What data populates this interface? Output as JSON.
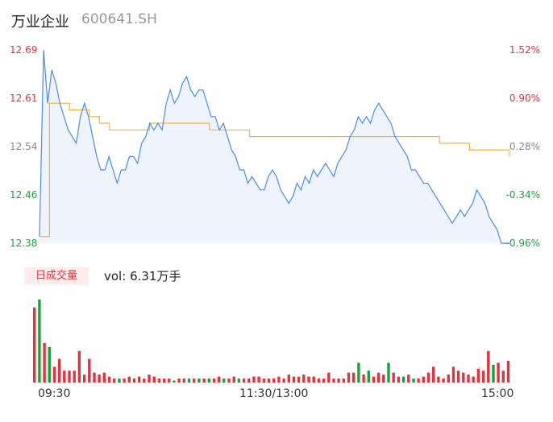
{
  "header": {
    "name": "万业企业",
    "code": "600641.SH"
  },
  "badge": "日成交量",
  "volume": {
    "label": "vol:",
    "value": "6.31万手"
  },
  "colors": {
    "price_line": "#4a8cf0",
    "avg_line": "#f0b43c",
    "up": "#e6323c",
    "down": "#1aa33b",
    "flat": "#888888",
    "area_fill": "#eef3fc"
  },
  "chart_data": [
    {
      "type": "line",
      "title": "",
      "ylim": [
        12.38,
        12.69
      ],
      "y_ticks_left": [
        "12.69",
        "12.61",
        "12.54",
        "12.46",
        "12.38"
      ],
      "y_ticks_right": [
        "1.52%",
        "0.90%",
        "0.28%",
        "-0.34%",
        "-0.96%"
      ],
      "x_ticks": [
        "09:30",
        "11:30/13:00",
        "15:00"
      ],
      "series": [
        {
          "role": "price",
          "values": [
            12.4,
            12.68,
            12.6,
            12.65,
            12.63,
            12.6,
            12.58,
            12.56,
            12.55,
            12.54,
            12.58,
            12.6,
            12.58,
            12.55,
            12.52,
            12.5,
            12.5,
            12.52,
            12.5,
            12.48,
            12.5,
            12.5,
            12.52,
            12.52,
            12.51,
            12.54,
            12.55,
            12.57,
            12.56,
            12.57,
            12.56,
            12.6,
            12.62,
            12.6,
            12.61,
            12.63,
            12.64,
            12.62,
            12.61,
            12.62,
            12.62,
            12.6,
            12.58,
            12.58,
            12.56,
            12.57,
            12.55,
            12.53,
            12.52,
            12.5,
            12.5,
            12.48,
            12.49,
            12.48,
            12.47,
            12.47,
            12.49,
            12.5,
            12.49,
            12.47,
            12.46,
            12.45,
            12.46,
            12.48,
            12.47,
            12.49,
            12.48,
            12.5,
            12.49,
            12.5,
            12.51,
            12.5,
            12.49,
            12.51,
            12.52,
            12.53,
            12.55,
            12.56,
            12.58,
            12.57,
            12.58,
            12.57,
            12.59,
            12.6,
            12.59,
            12.58,
            12.57,
            12.55,
            12.54,
            12.53,
            12.52,
            12.5,
            12.5,
            12.49,
            12.48,
            12.48,
            12.47,
            12.46,
            12.45,
            12.44,
            12.43,
            12.42,
            12.43,
            12.44,
            12.43,
            12.44,
            12.45,
            12.47,
            12.46,
            12.45,
            12.43,
            12.42,
            12.41,
            12.39,
            12.39,
            12.39
          ],
          "y_range": [
            12.39,
            12.68
          ]
        },
        {
          "role": "average",
          "values": [
            12.4,
            12.6,
            12.6,
            12.59,
            12.59,
            12.58,
            12.57,
            12.56,
            12.56,
            12.56,
            12.56,
            12.57,
            12.57,
            12.57,
            12.57,
            12.57,
            12.57,
            12.56,
            12.56,
            12.56,
            12.56,
            12.55,
            12.55,
            12.55,
            12.55,
            12.55,
            12.55,
            12.55,
            12.55,
            12.55,
            12.55,
            12.55,
            12.55,
            12.55,
            12.55,
            12.55,
            12.55,
            12.55,
            12.55,
            12.55,
            12.54,
            12.54,
            12.54,
            12.53,
            12.53,
            12.53,
            12.53,
            12.52
          ]
        }
      ]
    },
    {
      "type": "bar",
      "title": "",
      "values": [
        38,
        42,
        20,
        18,
        8,
        12,
        6,
        6,
        6,
        16,
        4,
        12,
        5,
        4,
        5,
        3,
        2,
        2,
        2,
        3,
        2,
        3,
        2,
        4,
        3,
        2,
        2,
        2,
        1,
        2,
        2,
        2,
        2,
        2,
        2,
        2,
        2,
        3,
        2,
        2,
        3,
        2,
        2,
        2,
        3,
        3,
        2,
        2,
        2,
        3,
        2,
        4,
        3,
        3,
        4,
        3,
        3,
        2,
        2,
        5,
        2,
        2,
        2,
        5,
        5,
        10,
        4,
        6,
        3,
        5,
        4,
        10,
        5,
        3,
        3,
        4,
        2,
        2,
        3,
        5,
        8,
        3,
        2,
        4,
        8,
        6,
        5,
        4,
        3,
        7,
        6,
        16,
        9,
        10,
        6,
        11
      ],
      "colors": [
        "up",
        "down",
        "up",
        "down",
        "up",
        "up",
        "up",
        "up",
        "up",
        "up",
        "up",
        "up",
        "up",
        "up",
        "up",
        "up",
        "up",
        "down",
        "up",
        "up",
        "up",
        "up",
        "up",
        "up",
        "up",
        "up",
        "up",
        "up",
        "down",
        "up",
        "up",
        "down",
        "up",
        "down",
        "up",
        "down",
        "up",
        "up",
        "down",
        "up",
        "up",
        "down",
        "up",
        "up",
        "up",
        "up",
        "up",
        "up",
        "up",
        "up",
        "up",
        "up",
        "up",
        "up",
        "up",
        "up",
        "up",
        "up",
        "up",
        "up",
        "up",
        "up",
        "up",
        "up",
        "up",
        "down",
        "up",
        "down",
        "up",
        "up",
        "up",
        "down",
        "up",
        "up",
        "down",
        "up",
        "down",
        "up",
        "up",
        "up",
        "up",
        "up",
        "up",
        "up",
        "up",
        "up",
        "up",
        "up",
        "up",
        "up",
        "up",
        "up",
        "down",
        "up",
        "up",
        "up"
      ]
    }
  ]
}
